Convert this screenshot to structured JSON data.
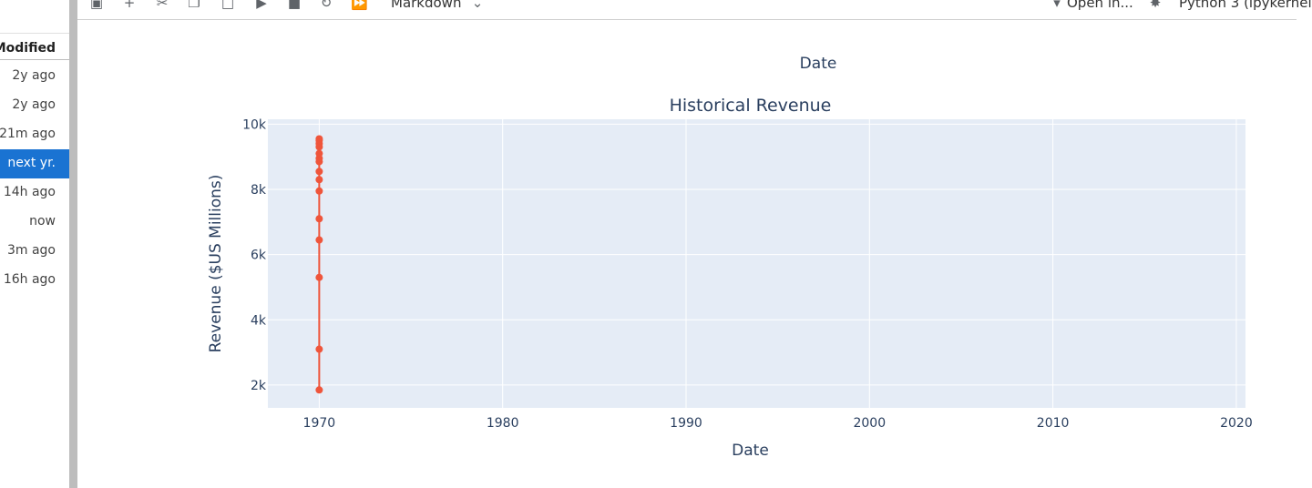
{
  "file_browser": {
    "header": "Modified",
    "rows": [
      {
        "label": "2y ago",
        "selected": false
      },
      {
        "label": "2y ago",
        "selected": false
      },
      {
        "label": "21m ago",
        "selected": false
      },
      {
        "label": "next yr.",
        "selected": true
      },
      {
        "label": "14h ago",
        "selected": false
      },
      {
        "label": "now",
        "selected": false
      },
      {
        "label": "3m ago",
        "selected": false
      },
      {
        "label": "16h ago",
        "selected": false
      }
    ]
  },
  "toolbar": {
    "icons": [
      "save-icon",
      "add-cell-icon",
      "cut-icon",
      "copy-icon",
      "paste-icon",
      "run-icon",
      "stop-icon",
      "restart-icon",
      "fast-forward-icon"
    ],
    "cell_type": "Markdown",
    "open_in": "Open in...",
    "kernel": "Python 3 (ipykernel"
  },
  "top_label": "Date",
  "chart_data": {
    "type": "line",
    "title": "Historical Revenue",
    "xlabel": "Date",
    "ylabel": "Revenue ($US Millions)",
    "xlim": [
      1967.2,
      2020.5
    ],
    "ylim": [
      1300,
      10150
    ],
    "xticks": [
      1970,
      1980,
      1990,
      2000,
      2010,
      2020
    ],
    "yticks": [
      2000,
      4000,
      6000,
      8000,
      10000
    ],
    "ytick_labels": [
      "2k",
      "4k",
      "6k",
      "8k",
      "10k"
    ],
    "grid": true,
    "color": "#ef553b",
    "plot_bg": "#e5ecf6",
    "x": [
      1970,
      1970,
      1970,
      1970,
      1970,
      1970,
      1970,
      1970,
      1970,
      1970,
      1970,
      1970,
      1970,
      1970,
      1970
    ],
    "y": [
      1850,
      3100,
      5300,
      6450,
      7100,
      7950,
      8300,
      8550,
      8850,
      8950,
      9100,
      9300,
      9400,
      9500,
      9550
    ]
  }
}
